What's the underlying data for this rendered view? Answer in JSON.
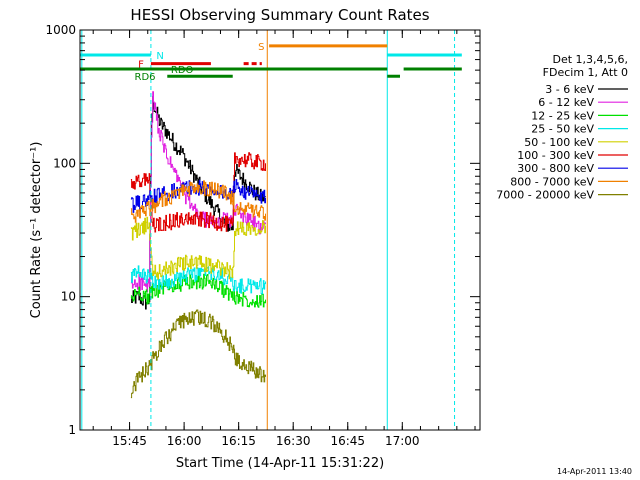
{
  "chart_data": {
    "type": "line",
    "title": "HESSI Observing Summary Count Rates",
    "xlabel": "Start Time (14-Apr-11 15:31:22)",
    "ylabel": "Count Rate (s⁻¹ detector⁻¹)",
    "yscale": "log",
    "ylim": [
      1,
      1000
    ],
    "xlim_minutes": [
      0,
      110
    ],
    "x_ticks": [
      "15:45",
      "16:00",
      "16:15",
      "16:30",
      "16:45",
      "17:00"
    ],
    "y_ticks": [
      "1",
      "10",
      "100",
      "1000"
    ],
    "footer_date": "14-Apr-2011 13:40",
    "legend": {
      "header": [
        "Det 1,3,4,5,6,",
        "FDecim 1, Att 0"
      ],
      "entries": [
        {
          "label": "3 - 6 keV",
          "color": "#000000"
        },
        {
          "label": "6 - 12 keV",
          "color": "#e020e0"
        },
        {
          "label": "12 - 25 keV",
          "color": "#00e000"
        },
        {
          "label": "25 - 50 keV",
          "color": "#00e8e8"
        },
        {
          "label": "50 - 100 keV",
          "color": "#d0d000"
        },
        {
          "label": "100 - 300 keV",
          "color": "#e00000"
        },
        {
          "label": "300 - 800 keV",
          "color": "#0000e8"
        },
        {
          "label": "800 - 7000 keV",
          "color": "#f08000"
        },
        {
          "label": "7000 - 20000 keV",
          "color": "#808000"
        }
      ]
    },
    "flags": {
      "N": {
        "label": "N",
        "color": "#00e8e8",
        "segments": [
          [
            0,
            19.5
          ],
          [
            84.5,
            105
          ]
        ],
        "level": 650
      },
      "S": {
        "label": "S",
        "color": "#f08000",
        "segments": [
          [
            52,
            84.5
          ]
        ],
        "level": 760
      },
      "F": {
        "label": "F",
        "color": "#e00000",
        "segments": [
          [
            19.5,
            36
          ],
          [
            45,
            50
          ]
        ],
        "dashed_segment_index": 1,
        "level": 560
      },
      "RD0": {
        "label": "RDO",
        "color": "#008000",
        "segments": [
          [
            0,
            84.5
          ],
          [
            86,
            86
          ],
          [
            89,
            105
          ]
        ],
        "level": 510
      },
      "RD6": {
        "label": "RD6",
        "color": "#008000",
        "segments": [
          [
            24,
            42
          ],
          [
            84.5,
            88
          ]
        ],
        "level": 450
      }
    },
    "vlines": [
      {
        "x": 0.5,
        "color": "#00e8e8",
        "style": "solid"
      },
      {
        "x": 19.5,
        "color": "#00e8e8",
        "style": "dashed"
      },
      {
        "x": 51.5,
        "color": "#f08000",
        "style": "solid"
      },
      {
        "x": 84.5,
        "color": "#00e8e8",
        "style": "solid"
      },
      {
        "x": 103,
        "color": "#00e8e8",
        "style": "dashed"
      }
    ],
    "series": [
      {
        "name": "3 - 6 keV",
        "color": "#000000",
        "x": [
          14,
          16,
          18,
          19,
          19.6,
          20,
          21,
          22,
          24,
          26,
          28,
          30,
          32,
          34,
          36,
          38,
          40,
          42,
          42.5,
          44,
          46,
          48,
          50,
          51
        ],
        "y": [
          9.5,
          10,
          9,
          9.5,
          200,
          290,
          240,
          200,
          170,
          140,
          120,
          95,
          75,
          60,
          50,
          42,
          35,
          33,
          90,
          80,
          70,
          60,
          55,
          56
        ]
      },
      {
        "name": "6 - 12 keV",
        "color": "#e020e0",
        "x": [
          14,
          16,
          18,
          19,
          19.6,
          20,
          21,
          22,
          24,
          26,
          28,
          30,
          32,
          34,
          36,
          38,
          40,
          42,
          42.5,
          44,
          46,
          48,
          50,
          51
        ],
        "y": [
          12,
          13,
          12,
          12,
          150,
          300,
          220,
          160,
          110,
          85,
          65,
          50,
          42,
          38,
          36,
          37,
          38,
          38,
          45,
          42,
          38,
          35,
          33,
          35
        ]
      },
      {
        "name": "12 - 25 keV",
        "color": "#00e000",
        "x": [
          14,
          16,
          18,
          19,
          20,
          24,
          28,
          32,
          36,
          40,
          42,
          42.5,
          46,
          50,
          51
        ],
        "y": [
          9.5,
          11,
          10,
          10,
          11,
          12,
          12.5,
          13,
          13,
          11,
          10,
          10,
          9.5,
          9.5,
          9.5
        ]
      },
      {
        "name": "25 - 50 keV",
        "color": "#00e8e8",
        "x": [
          14,
          16,
          18,
          19,
          20,
          24,
          28,
          32,
          36,
          40,
          42,
          42.5,
          46,
          50,
          51
        ],
        "y": [
          14,
          15,
          14,
          14,
          13,
          13,
          14,
          15,
          15,
          14,
          13,
          12,
          12,
          12,
          13
        ]
      },
      {
        "name": "50 - 100 keV",
        "color": "#d0d000",
        "x": [
          14,
          16,
          18,
          19,
          20,
          24,
          28,
          32,
          36,
          40,
          42,
          42.5,
          46,
          50,
          51
        ],
        "y": [
          30,
          32,
          34,
          35,
          15,
          16,
          18,
          18,
          17,
          16,
          15,
          32,
          33,
          33,
          34
        ]
      },
      {
        "name": "100 - 300 keV",
        "color": "#e00000",
        "x": [
          14,
          16,
          18,
          19,
          20,
          24,
          28,
          32,
          36,
          40,
          42,
          42.5,
          46,
          50,
          51
        ],
        "y": [
          68,
          72,
          76,
          78,
          34,
          36,
          38,
          38,
          37,
          35,
          34,
          110,
          105,
          100,
          100
        ]
      },
      {
        "name": "300 - 800 keV",
        "color": "#0000e8",
        "x": [
          14,
          16,
          18,
          19,
          20,
          24,
          28,
          32,
          36,
          40,
          42,
          42.5,
          46,
          50,
          51
        ],
        "y": [
          48,
          50,
          52,
          54,
          56,
          60,
          65,
          66,
          64,
          60,
          55,
          70,
          60,
          55,
          55
        ]
      },
      {
        "name": "800 - 7000 keV",
        "color": "#f08000",
        "x": [
          14,
          16,
          18,
          19,
          20,
          24,
          28,
          32,
          36,
          40,
          42,
          42.5,
          46,
          50,
          51
        ],
        "y": [
          40,
          42,
          45,
          46,
          48,
          55,
          62,
          66,
          65,
          60,
          55,
          48,
          44,
          42,
          42
        ]
      },
      {
        "name": "7000 - 20000 keV",
        "color": "#808000",
        "x": [
          14,
          16,
          18,
          19,
          20,
          24,
          28,
          32,
          36,
          40,
          42,
          42.5,
          46,
          50,
          51
        ],
        "y": [
          2,
          2.4,
          2.8,
          3,
          3.4,
          5,
          6.5,
          7,
          6.5,
          5,
          4,
          3.5,
          3,
          2.6,
          2.5
        ]
      }
    ]
  }
}
